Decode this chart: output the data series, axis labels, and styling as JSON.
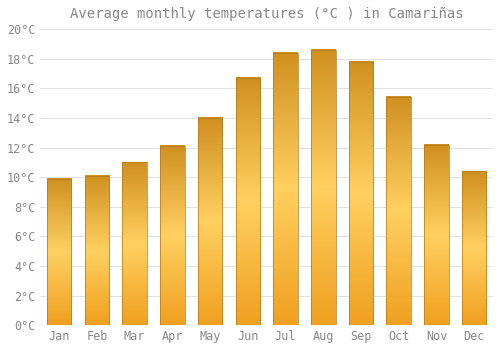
{
  "title": "Average monthly temperatures (°C ) in Camariñas",
  "months": [
    "Jan",
    "Feb",
    "Mar",
    "Apr",
    "May",
    "Jun",
    "Jul",
    "Aug",
    "Sep",
    "Oct",
    "Nov",
    "Dec"
  ],
  "values": [
    9.9,
    10.1,
    11.0,
    12.1,
    14.0,
    16.7,
    18.4,
    18.6,
    17.8,
    15.4,
    12.2,
    10.4
  ],
  "bar_color_left": "#F0A020",
  "bar_color_center": "#FFD060",
  "bar_color_right": "#D09020",
  "bar_edge_color": "#B07818",
  "background_color": "#FFFFFF",
  "grid_color": "#DDDDDD",
  "text_color": "#888888",
  "ylim": [
    0,
    20
  ],
  "yticks": [
    0,
    2,
    4,
    6,
    8,
    10,
    12,
    14,
    16,
    18,
    20
  ],
  "title_fontsize": 10,
  "tick_fontsize": 8.5,
  "font_family": "monospace",
  "bar_width": 0.65
}
